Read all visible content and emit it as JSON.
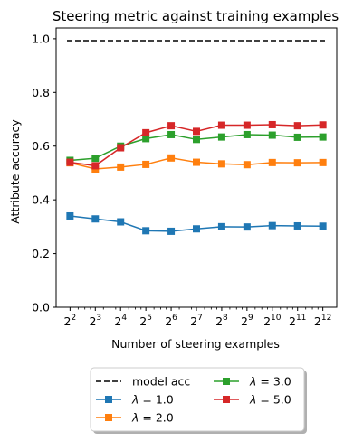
{
  "chart_data": {
    "type": "line",
    "title": "Steering metric against training examples",
    "xlabel": "Number of steering examples",
    "ylabel": "Attribute accuracy",
    "xscale": "log2",
    "x": [
      4,
      8,
      16,
      32,
      64,
      128,
      256,
      512,
      1024,
      2048,
      4096
    ],
    "xtick_labels": [
      {
        "base": "2",
        "exp": "2"
      },
      {
        "base": "2",
        "exp": "3"
      },
      {
        "base": "2",
        "exp": "4"
      },
      {
        "base": "2",
        "exp": "5"
      },
      {
        "base": "2",
        "exp": "6"
      },
      {
        "base": "2",
        "exp": "7"
      },
      {
        "base": "2",
        "exp": "8"
      },
      {
        "base": "2",
        "exp": "9"
      },
      {
        "base": "2",
        "exp": "10"
      },
      {
        "base": "2",
        "exp": "11"
      },
      {
        "base": "2",
        "exp": "12"
      }
    ],
    "ylim": [
      0,
      1.04
    ],
    "yticks": [
      "0.0",
      "0.2",
      "0.4",
      "0.6",
      "0.8",
      "1.0"
    ],
    "grid": false,
    "legend_placement": "below plot, centered, two columns",
    "reference_line": {
      "name": "model acc",
      "value": 0.993,
      "color": "#000000",
      "style": "dashed"
    },
    "series": [
      {
        "name": "λ = 1.0",
        "symbol": "λ",
        "value_text": "= 1.0",
        "color": "#1f77b4",
        "values": [
          0.34,
          0.329,
          0.318,
          0.285,
          0.283,
          0.292,
          0.3,
          0.299,
          0.304,
          0.303,
          0.302
        ]
      },
      {
        "name": "λ = 2.0",
        "symbol": "λ",
        "value_text": "= 2.0",
        "color": "#ff7f0e",
        "values": [
          0.538,
          0.515,
          0.522,
          0.532,
          0.556,
          0.54,
          0.534,
          0.531,
          0.539,
          0.538,
          0.539
        ]
      },
      {
        "name": "λ = 3.0",
        "symbol": "λ",
        "value_text": "= 3.0",
        "color": "#2ca02c",
        "values": [
          0.547,
          0.555,
          0.6,
          0.628,
          0.643,
          0.625,
          0.634,
          0.643,
          0.641,
          0.633,
          0.634
        ]
      },
      {
        "name": "λ = 5.0",
        "symbol": "λ",
        "value_text": "= 5.0",
        "color": "#d62728",
        "values": [
          0.54,
          0.527,
          0.594,
          0.65,
          0.676,
          0.655,
          0.678,
          0.678,
          0.68,
          0.676,
          0.679
        ]
      }
    ]
  }
}
